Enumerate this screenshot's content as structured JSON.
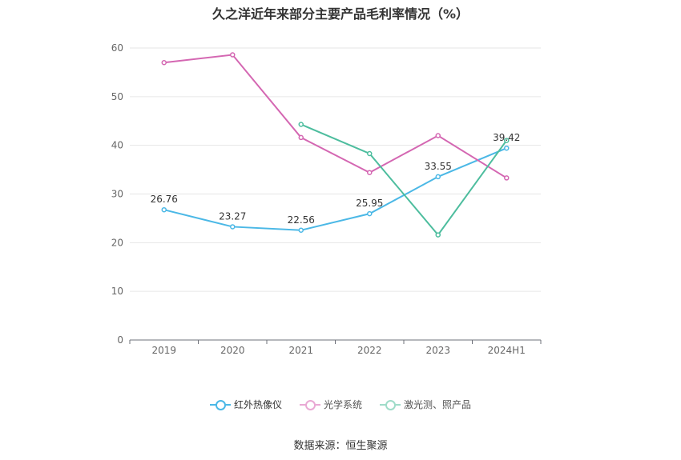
{
  "title": "久之洋近年来部分主要产品毛利率情况（%）",
  "source": "数据来源：恒生聚源",
  "chart_data": {
    "type": "line",
    "categories": [
      "2019",
      "2020",
      "2021",
      "2022",
      "2023",
      "2024H1"
    ],
    "ylim": [
      0,
      60
    ],
    "yticks": [
      0,
      10,
      20,
      30,
      40,
      50,
      60
    ],
    "grid": true,
    "legend_position": "bottom",
    "series": [
      {
        "name": "红外热像仪",
        "color": "#4bb8e6",
        "values": [
          26.76,
          23.27,
          22.56,
          25.95,
          33.55,
          39.42
        ],
        "labels": [
          "26.76",
          "23.27",
          "22.56",
          "25.95",
          "33.55",
          "39.42"
        ]
      },
      {
        "name": "光学系统",
        "color": "#d467b2",
        "values": [
          57.0,
          58.6,
          41.6,
          34.4,
          42.0,
          33.3
        ],
        "labels": null
      },
      {
        "name": "激光测、照产品",
        "color": "#4dbd9e",
        "values": [
          null,
          null,
          44.3,
          38.3,
          21.6,
          41.0
        ],
        "labels": null
      }
    ]
  }
}
